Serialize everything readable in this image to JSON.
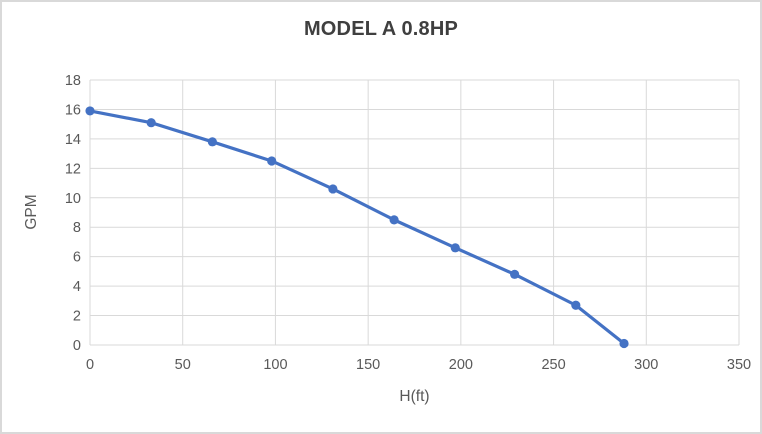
{
  "chart_data": {
    "type": "line",
    "title": "MODEL A 0.8HP",
    "xlabel": "H(ft)",
    "ylabel": "GPM",
    "x": [
      0,
      33,
      66,
      98,
      131,
      164,
      197,
      229,
      262,
      288
    ],
    "y": [
      15.9,
      15.1,
      13.8,
      12.5,
      10.6,
      8.5,
      6.6,
      4.8,
      2.7,
      0.1
    ],
    "xlim": [
      0,
      350
    ],
    "ylim": [
      0,
      18
    ],
    "xticks": [
      0,
      50,
      100,
      150,
      200,
      250,
      300,
      350
    ],
    "yticks": [
      0,
      2,
      4,
      6,
      8,
      10,
      12,
      14,
      16,
      18
    ],
    "grid": true,
    "legend": false,
    "line_color": "#4472C4",
    "marker": "circle",
    "marker_radius": 4.6,
    "line_width": 3.2,
    "gridline_color": "#d9d9d9",
    "axis_line_color": "#d9d9d9",
    "tick_text_color": "#595959",
    "axis_title_color": "#595959",
    "title_color": "#3f3f3f",
    "border_color": "#d9d9d9",
    "background_color": "#ffffff"
  }
}
